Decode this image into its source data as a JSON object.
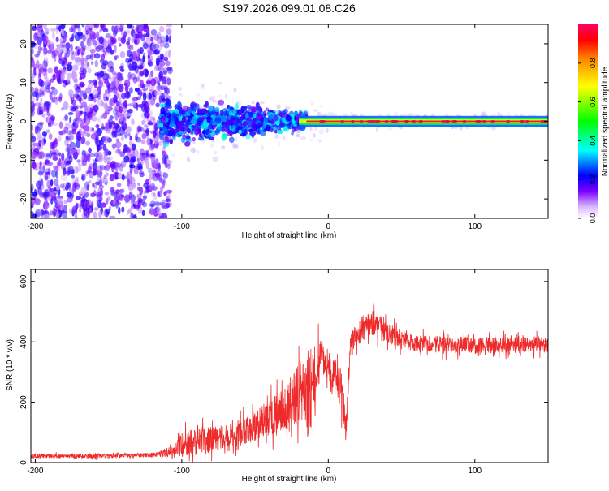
{
  "page_title": "S197.2026.099.01.08.C26",
  "chart_data": [
    {
      "type": "heatmap",
      "title": "S197.2026.099.01.08.C26",
      "xlabel": "Height of straight line (km)",
      "ylabel": "Frequency (Hz)",
      "xlim": [
        -203,
        150
      ],
      "ylim": [
        -25,
        25
      ],
      "x_ticks": [
        -200,
        -100,
        0,
        100
      ],
      "y_ticks": [
        -20,
        -10,
        0,
        10,
        20
      ],
      "colorbar": {
        "label": "Normalized spectral amplitude",
        "range": [
          0,
          1
        ],
        "ticks": [
          0.0,
          0.2,
          0.4,
          0.6,
          0.8
        ],
        "tick_labels": [
          "0.0",
          "0.2",
          "0.4",
          "0.6",
          "0.8"
        ],
        "colors": [
          "#ffffff",
          "#7a00ff",
          "#0000ff",
          "#00ffff",
          "#00ff00",
          "#ffff00",
          "#ff8800",
          "#ff0000",
          "#ff0066"
        ]
      },
      "regions": [
        {
          "name": "noise",
          "x_range": [
            -203,
            -110
          ],
          "freq_spread_hz": 25,
          "amplitude": "0.05-0.25"
        },
        {
          "name": "transition",
          "x_range": [
            -110,
            -15
          ],
          "freq_spread_hz": "10 narrowing to 4",
          "amplitude": "0.2-0.4"
        },
        {
          "name": "tone",
          "x_range": [
            -15,
            150
          ],
          "frequency_hz": 0,
          "amplitude": "0.8-1.0"
        }
      ]
    },
    {
      "type": "line",
      "xlabel": "Height of straight line (km)",
      "ylabel": "SNR (10 * v/v)",
      "xlim": [
        -203,
        150
      ],
      "ylim": [
        0,
        640
      ],
      "x_ticks": [
        -200,
        -100,
        0,
        100
      ],
      "y_ticks": [
        0,
        200,
        400,
        600
      ],
      "series": [
        {
          "name": "SNR",
          "color": "#ee2a2a",
          "x": [
            -203,
            -180,
            -150,
            -120,
            -105,
            -100,
            -90,
            -80,
            -70,
            -60,
            -50,
            -40,
            -30,
            -20,
            -15,
            -12,
            -8,
            -5,
            -2,
            0,
            5,
            8,
            10,
            12,
            15,
            20,
            25,
            30,
            35,
            40,
            50,
            60,
            80,
            100,
            120,
            140,
            150
          ],
          "mean": [
            22,
            22,
            22,
            25,
            40,
            60,
            70,
            75,
            85,
            100,
            120,
            150,
            180,
            230,
            250,
            260,
            300,
            350,
            330,
            310,
            280,
            250,
            200,
            100,
            380,
            430,
            450,
            460,
            450,
            430,
            410,
            395,
            390,
            390,
            388,
            392,
            392
          ],
          "spread": [
            15,
            15,
            15,
            15,
            35,
            80,
            90,
            90,
            80,
            90,
            100,
            120,
            150,
            200,
            220,
            220,
            200,
            120,
            90,
            80,
            120,
            150,
            120,
            100,
            80,
            80,
            90,
            90,
            80,
            70,
            60,
            55,
            55,
            55,
            55,
            55,
            55
          ]
        }
      ]
    }
  ]
}
